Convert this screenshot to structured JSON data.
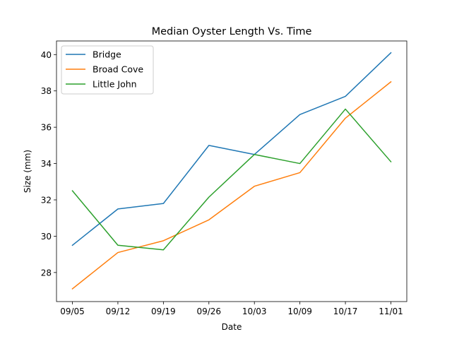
{
  "chart_data": {
    "type": "line",
    "title": "Median Oyster Length Vs. Time",
    "xlabel": "Date",
    "ylabel": "Size (mm)",
    "categories": [
      "09/05",
      "09/12",
      "09/19",
      "09/26",
      "10/03",
      "10/09",
      "10/17",
      "11/01"
    ],
    "ylim": [
      26.4,
      40.75
    ],
    "yticks": [
      28,
      30,
      32,
      34,
      36,
      38,
      40
    ],
    "grid": false,
    "legend_position": "upper-left",
    "series": [
      {
        "name": "Bridge",
        "color": "#1f77b4",
        "values": [
          29.5,
          31.5,
          31.8,
          35.0,
          34.5,
          36.7,
          37.7,
          40.1
        ]
      },
      {
        "name": "Broad Cove",
        "color": "#ff7f0e",
        "values": [
          27.1,
          29.1,
          29.75,
          30.9,
          32.75,
          33.5,
          36.5,
          38.5
        ]
      },
      {
        "name": "Little John",
        "color": "#2ca02c",
        "values": [
          32.5,
          29.5,
          29.25,
          32.15,
          34.5,
          34.0,
          37.0,
          34.1
        ]
      }
    ]
  }
}
